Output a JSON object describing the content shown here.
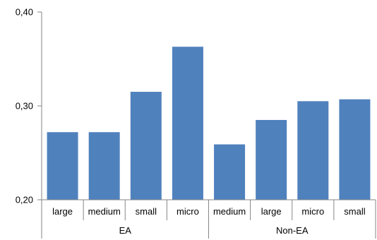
{
  "chart_data": {
    "type": "bar",
    "title": "",
    "xlabel": "",
    "ylabel": "",
    "ylim": [
      0.2,
      0.4
    ],
    "yticks": [
      {
        "value": 0.2,
        "label": "0,20"
      },
      {
        "value": 0.3,
        "label": "0,30"
      },
      {
        "value": 0.4,
        "label": "0,40"
      }
    ],
    "groups": [
      {
        "label": "EA",
        "start": 0,
        "count": 4
      },
      {
        "label": "Non-EA",
        "start": 4,
        "count": 4
      }
    ],
    "categories": [
      "large",
      "medium",
      "small",
      "micro",
      "medium",
      "large",
      "micro",
      "small"
    ],
    "values": [
      0.272,
      0.272,
      0.315,
      0.363,
      0.259,
      0.285,
      0.305,
      0.307
    ],
    "bar_color": "#4F81BD",
    "axis_color": "#868686",
    "grid": false,
    "legend": "none"
  }
}
